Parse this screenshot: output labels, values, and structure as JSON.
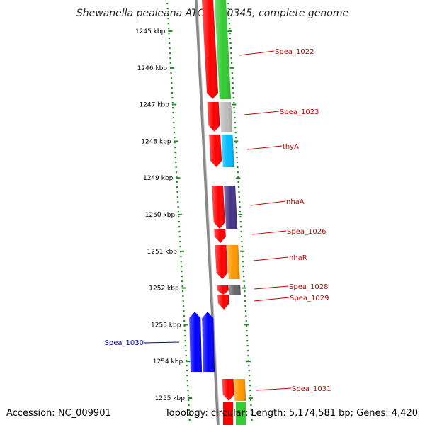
{
  "title": "Shewanella pealeana ATCC 700345, complete genome",
  "accession": "Accession: NC_009901",
  "topology_info": "Topology: circular; Length: 5,174,581 bp; Genes: 4,420",
  "colors": {
    "forward_gene": "#ff0000",
    "forward_label": "#cc0000",
    "reverse_gene": "#0000ff",
    "reverse_label": "#0000aa",
    "tick": "#228b22",
    "backbone": "#888888"
  },
  "ticks": [
    "1245 kbp",
    "1246 kbp",
    "1247 kbp",
    "1248 kbp",
    "1249 kbp",
    "1250 kbp",
    "1251 kbp",
    "1252 kbp",
    "1253 kbp",
    "1254 kbp",
    "1255 kbp"
  ],
  "genes": [
    {
      "name": "Spea_1022",
      "strand": "+",
      "cog_color": "#33cc33"
    },
    {
      "name": "Spea_1023",
      "strand": "+",
      "cog_color": "#bbbbbb"
    },
    {
      "name": "thyA",
      "strand": "+",
      "cog_color": "#00bbff"
    },
    {
      "name": "nhaA",
      "strand": "+",
      "cog_color": "#443388"
    },
    {
      "name": "Spea_1026",
      "strand": "+",
      "cog_color": ""
    },
    {
      "name": "nhaR",
      "strand": "+",
      "cog_color": "#ff9900"
    },
    {
      "name": "Spea_1028",
      "strand": "+",
      "cog_color": "#666666"
    },
    {
      "name": "Spea_1029",
      "strand": "+",
      "cog_color": ""
    },
    {
      "name": "Spea_1030",
      "strand": "-",
      "cog_color": "#0000ff"
    },
    {
      "name": "Spea_1031",
      "strand": "+",
      "cog_color": "#ff9900"
    }
  ]
}
